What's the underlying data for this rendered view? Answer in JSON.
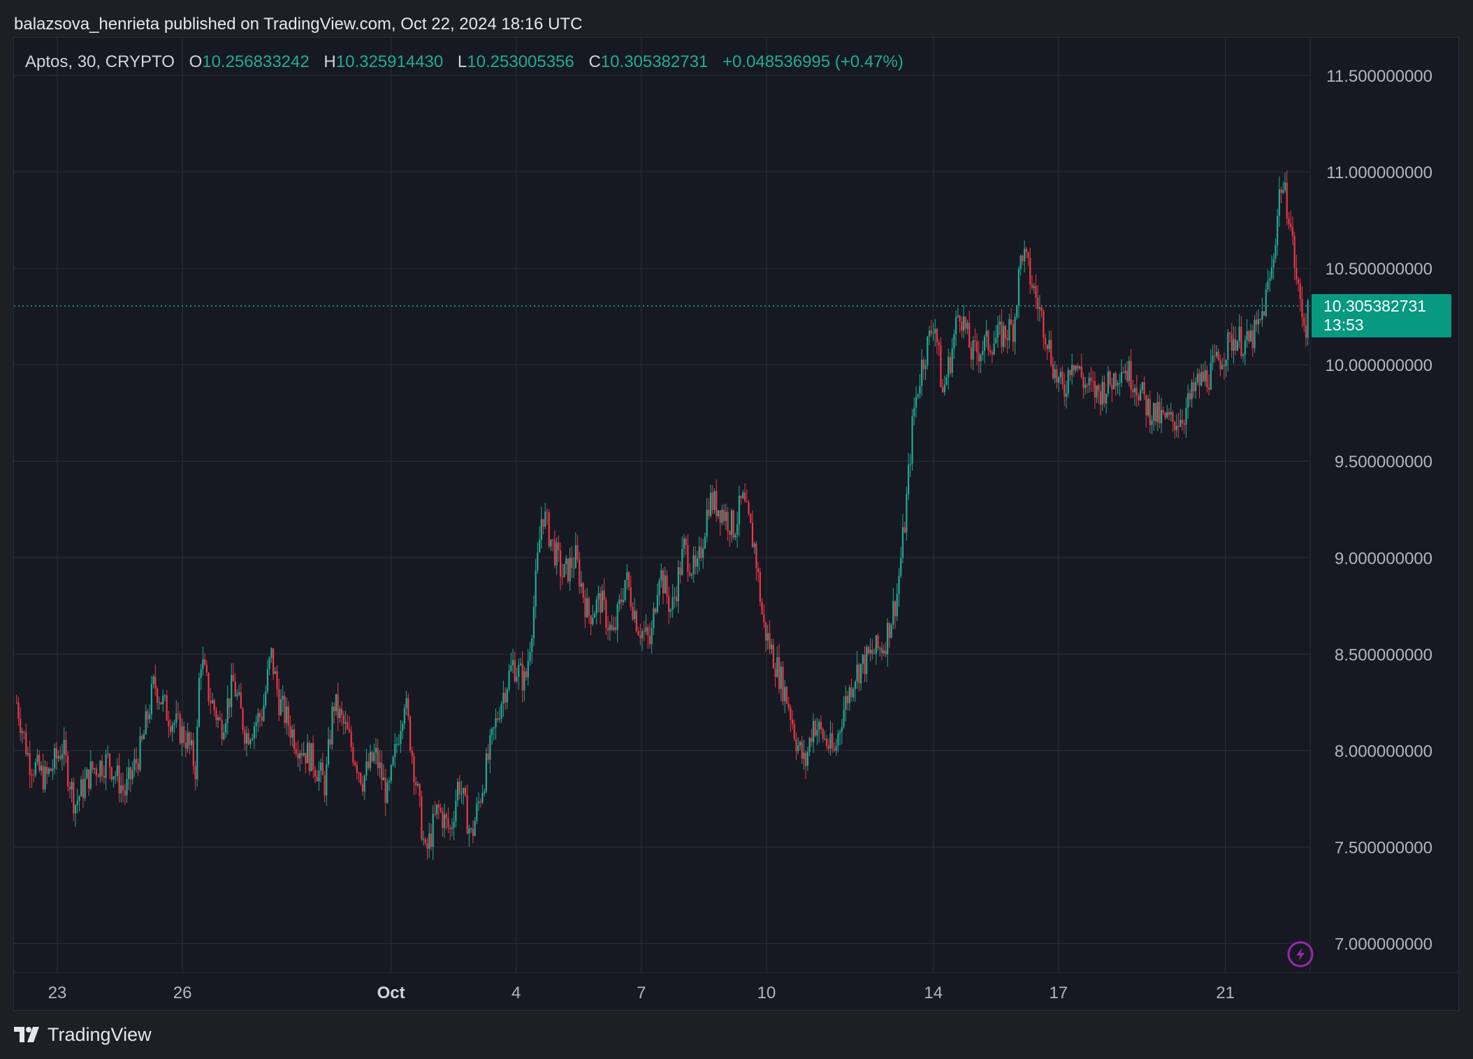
{
  "header": {
    "publish_line": "balazsova_henrieta published on TradingView.com, Oct 22, 2024 18:16 UTC"
  },
  "legend": {
    "symbol": "Aptos, 30, CRYPTO",
    "open_label": "O",
    "open": "10.256833242",
    "high_label": "H",
    "high": "10.325914430",
    "low_label": "L",
    "low": "10.253005356",
    "close_label": "C",
    "close": "10.305382731",
    "change": "+0.048536995 (+0.47%)"
  },
  "price_tag": {
    "price": "10.305382731",
    "countdown": "13:53"
  },
  "footer": {
    "brand": "TradingView"
  },
  "colors": {
    "up": "#22ab94",
    "down": "#f23645",
    "accent": "#089981",
    "grid": "#2a2e39",
    "background": "#161922",
    "text": "#b2b5be",
    "alert_icon": "#9c27b0"
  },
  "icons": {
    "alert": "lightning-bolt-icon",
    "logo": "tradingview-logo-icon"
  },
  "chart_data": {
    "type": "candlestick",
    "title": "Aptos, 30, CRYPTO",
    "interval": "30",
    "ylim": [
      6.95,
      11.55
    ],
    "y_ticks": [
      "11.500000000",
      "11.000000000",
      "10.500000000",
      "10.000000000",
      "9.500000000",
      "9.000000000",
      "8.500000000",
      "8.000000000",
      "7.500000000",
      "7.000000000"
    ],
    "y_tick_values": [
      11.5,
      11.0,
      10.5,
      10.0,
      9.5,
      9.0,
      8.5,
      8.0,
      7.5,
      7.0
    ],
    "x_ticks": [
      "23",
      "26",
      "Oct",
      "4",
      "7",
      "10",
      "14",
      "17",
      "21"
    ],
    "x_tick_bold": [
      false,
      false,
      true,
      false,
      false,
      false,
      false,
      false,
      false
    ],
    "x_tick_days": [
      1,
      4,
      9,
      12,
      15,
      18,
      22,
      25,
      29
    ],
    "x_range_days": [
      0,
      31.1
    ],
    "last_price": 10.305382731,
    "grid": true,
    "price_path": [
      [
        0,
        8.25
      ],
      [
        0.3,
        7.95
      ],
      [
        0.7,
        7.85
      ],
      [
        1.1,
        8.02
      ],
      [
        1.4,
        7.72
      ],
      [
        1.8,
        7.9
      ],
      [
        2.2,
        7.95
      ],
      [
        2.6,
        7.78
      ],
      [
        3,
        8.02
      ],
      [
        3.3,
        8.35
      ],
      [
        3.6,
        8.2
      ],
      [
        4.1,
        8.05
      ],
      [
        4.3,
        7.9
      ],
      [
        4.4,
        8.5
      ],
      [
        4.6,
        8.3
      ],
      [
        4.9,
        8.12
      ],
      [
        5.2,
        8.35
      ],
      [
        5.5,
        8.08
      ],
      [
        5.9,
        8.2
      ],
      [
        6.1,
        8.5
      ],
      [
        6.3,
        8.25
      ],
      [
        6.7,
        8.05
      ],
      [
        7.1,
        7.95
      ],
      [
        7.4,
        7.82
      ],
      [
        7.6,
        8.25
      ],
      [
        7.9,
        8.1
      ],
      [
        8.3,
        7.85
      ],
      [
        8.6,
        7.98
      ],
      [
        8.9,
        7.75
      ],
      [
        9.3,
        8.28
      ],
      [
        9.6,
        7.8
      ],
      [
        9.8,
        7.45
      ],
      [
        10.1,
        7.7
      ],
      [
        10.4,
        7.58
      ],
      [
        10.6,
        7.85
      ],
      [
        10.9,
        7.55
      ],
      [
        11.1,
        7.75
      ],
      [
        11.3,
        7.95
      ],
      [
        11.6,
        8.25
      ],
      [
        11.9,
        8.45
      ],
      [
        12.2,
        8.35
      ],
      [
        12.4,
        8.75
      ],
      [
        12.6,
        9.25
      ],
      [
        12.8,
        9.1
      ],
      [
        13.1,
        8.9
      ],
      [
        13.4,
        9.0
      ],
      [
        13.7,
        8.7
      ],
      [
        14.0,
        8.78
      ],
      [
        14.3,
        8.58
      ],
      [
        14.6,
        8.9
      ],
      [
        14.9,
        8.65
      ],
      [
        15.2,
        8.55
      ],
      [
        15.4,
        8.95
      ],
      [
        15.7,
        8.72
      ],
      [
        16.0,
        9.05
      ],
      [
        16.3,
        8.9
      ],
      [
        16.6,
        9.3
      ],
      [
        16.9,
        9.25
      ],
      [
        17.2,
        9.15
      ],
      [
        17.4,
        9.3
      ],
      [
        17.7,
        9.05
      ],
      [
        17.9,
        8.65
      ],
      [
        18.2,
        8.45
      ],
      [
        18.5,
        8.25
      ],
      [
        18.7,
        8.05
      ],
      [
        18.9,
        7.92
      ],
      [
        19.1,
        8.15
      ],
      [
        19.4,
        8.05
      ],
      [
        19.6,
        7.98
      ],
      [
        19.8,
        8.2
      ],
      [
        20.1,
        8.4
      ],
      [
        20.5,
        8.5
      ],
      [
        20.8,
        8.55
      ],
      [
        21.1,
        8.8
      ],
      [
        21.3,
        9.2
      ],
      [
        21.5,
        9.75
      ],
      [
        21.7,
        10.0
      ],
      [
        21.9,
        10.15
      ],
      [
        22.0,
        10.25
      ],
      [
        22.2,
        9.85
      ],
      [
        22.4,
        10.05
      ],
      [
        22.6,
        10.3
      ],
      [
        22.9,
        10.05
      ],
      [
        23.2,
        10.1
      ],
      [
        23.6,
        10.15
      ],
      [
        23.9,
        10.2
      ],
      [
        24.1,
        10.6
      ],
      [
        24.3,
        10.45
      ],
      [
        24.5,
        10.3
      ],
      [
        24.7,
        10.15
      ],
      [
        24.9,
        9.95
      ],
      [
        25.1,
        9.85
      ],
      [
        25.3,
        10.05
      ],
      [
        25.6,
        9.9
      ],
      [
        25.9,
        9.85
      ],
      [
        26.2,
        9.9
      ],
      [
        26.5,
        10.0
      ],
      [
        26.8,
        9.92
      ],
      [
        27.1,
        9.78
      ],
      [
        27.4,
        9.72
      ],
      [
        27.7,
        9.7
      ],
      [
        28.0,
        9.75
      ],
      [
        28.3,
        9.9
      ],
      [
        28.6,
        9.95
      ],
      [
        28.9,
        10.05
      ],
      [
        29.2,
        10.15
      ],
      [
        29.5,
        10.1
      ],
      [
        29.8,
        10.2
      ],
      [
        30.1,
        10.5
      ],
      [
        30.3,
        10.95
      ],
      [
        30.5,
        10.8
      ],
      [
        30.7,
        10.4
      ],
      [
        30.9,
        10.2
      ],
      [
        31.0,
        10.3
      ]
    ]
  }
}
